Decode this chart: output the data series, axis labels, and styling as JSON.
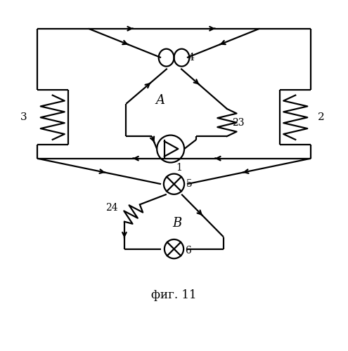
{
  "title": "фиг. 11",
  "bg_color": "#ffffff",
  "line_color": "#000000",
  "fig_width": 4.95,
  "fig_height": 5.0,
  "dpi": 100
}
